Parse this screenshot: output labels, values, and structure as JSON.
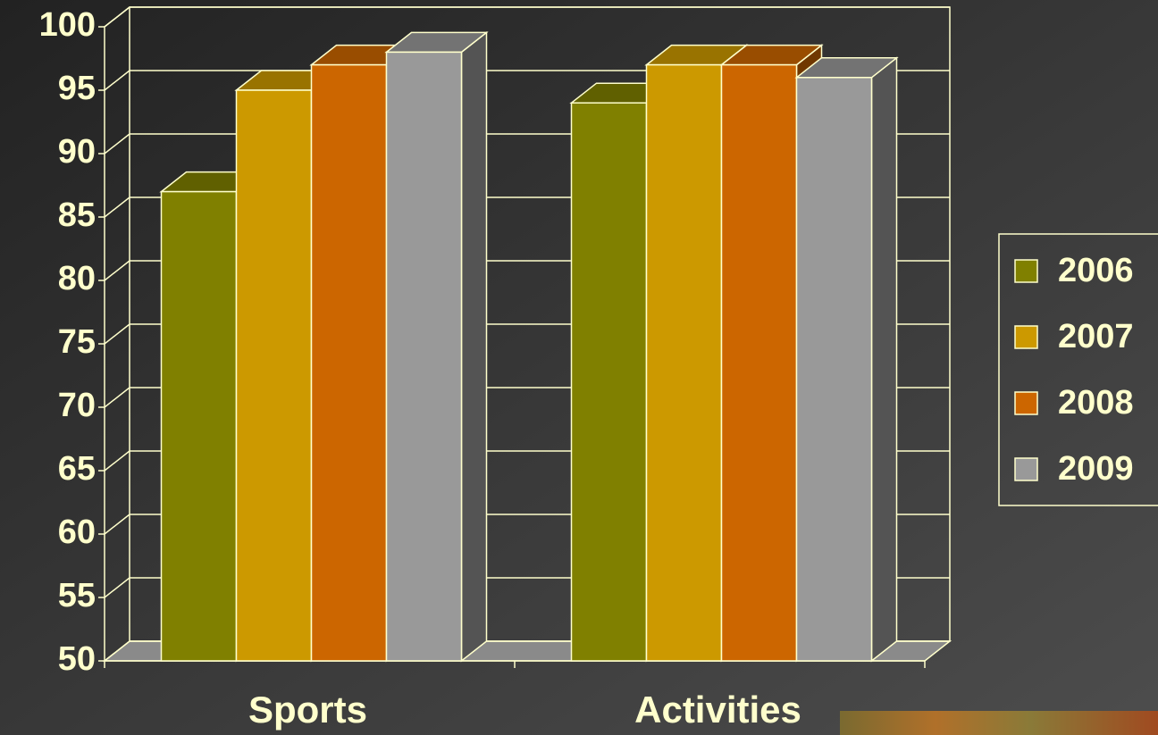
{
  "chart_data": {
    "type": "bar",
    "categories": [
      "Sports",
      "Activities"
    ],
    "series": [
      {
        "name": "2006",
        "color": "#808000",
        "values": [
          87,
          94
        ]
      },
      {
        "name": "2007",
        "color": "#cc9900",
        "values": [
          95,
          97
        ]
      },
      {
        "name": "2008",
        "color": "#cc6600",
        "values": [
          97,
          97
        ]
      },
      {
        "name": "2009",
        "color": "#999999",
        "values": [
          98,
          96
        ]
      }
    ],
    "ylim": [
      50,
      100
    ],
    "yticks": [
      50,
      55,
      60,
      65,
      70,
      75,
      80,
      85,
      90,
      95,
      100
    ],
    "grid": true,
    "legend": "right"
  }
}
